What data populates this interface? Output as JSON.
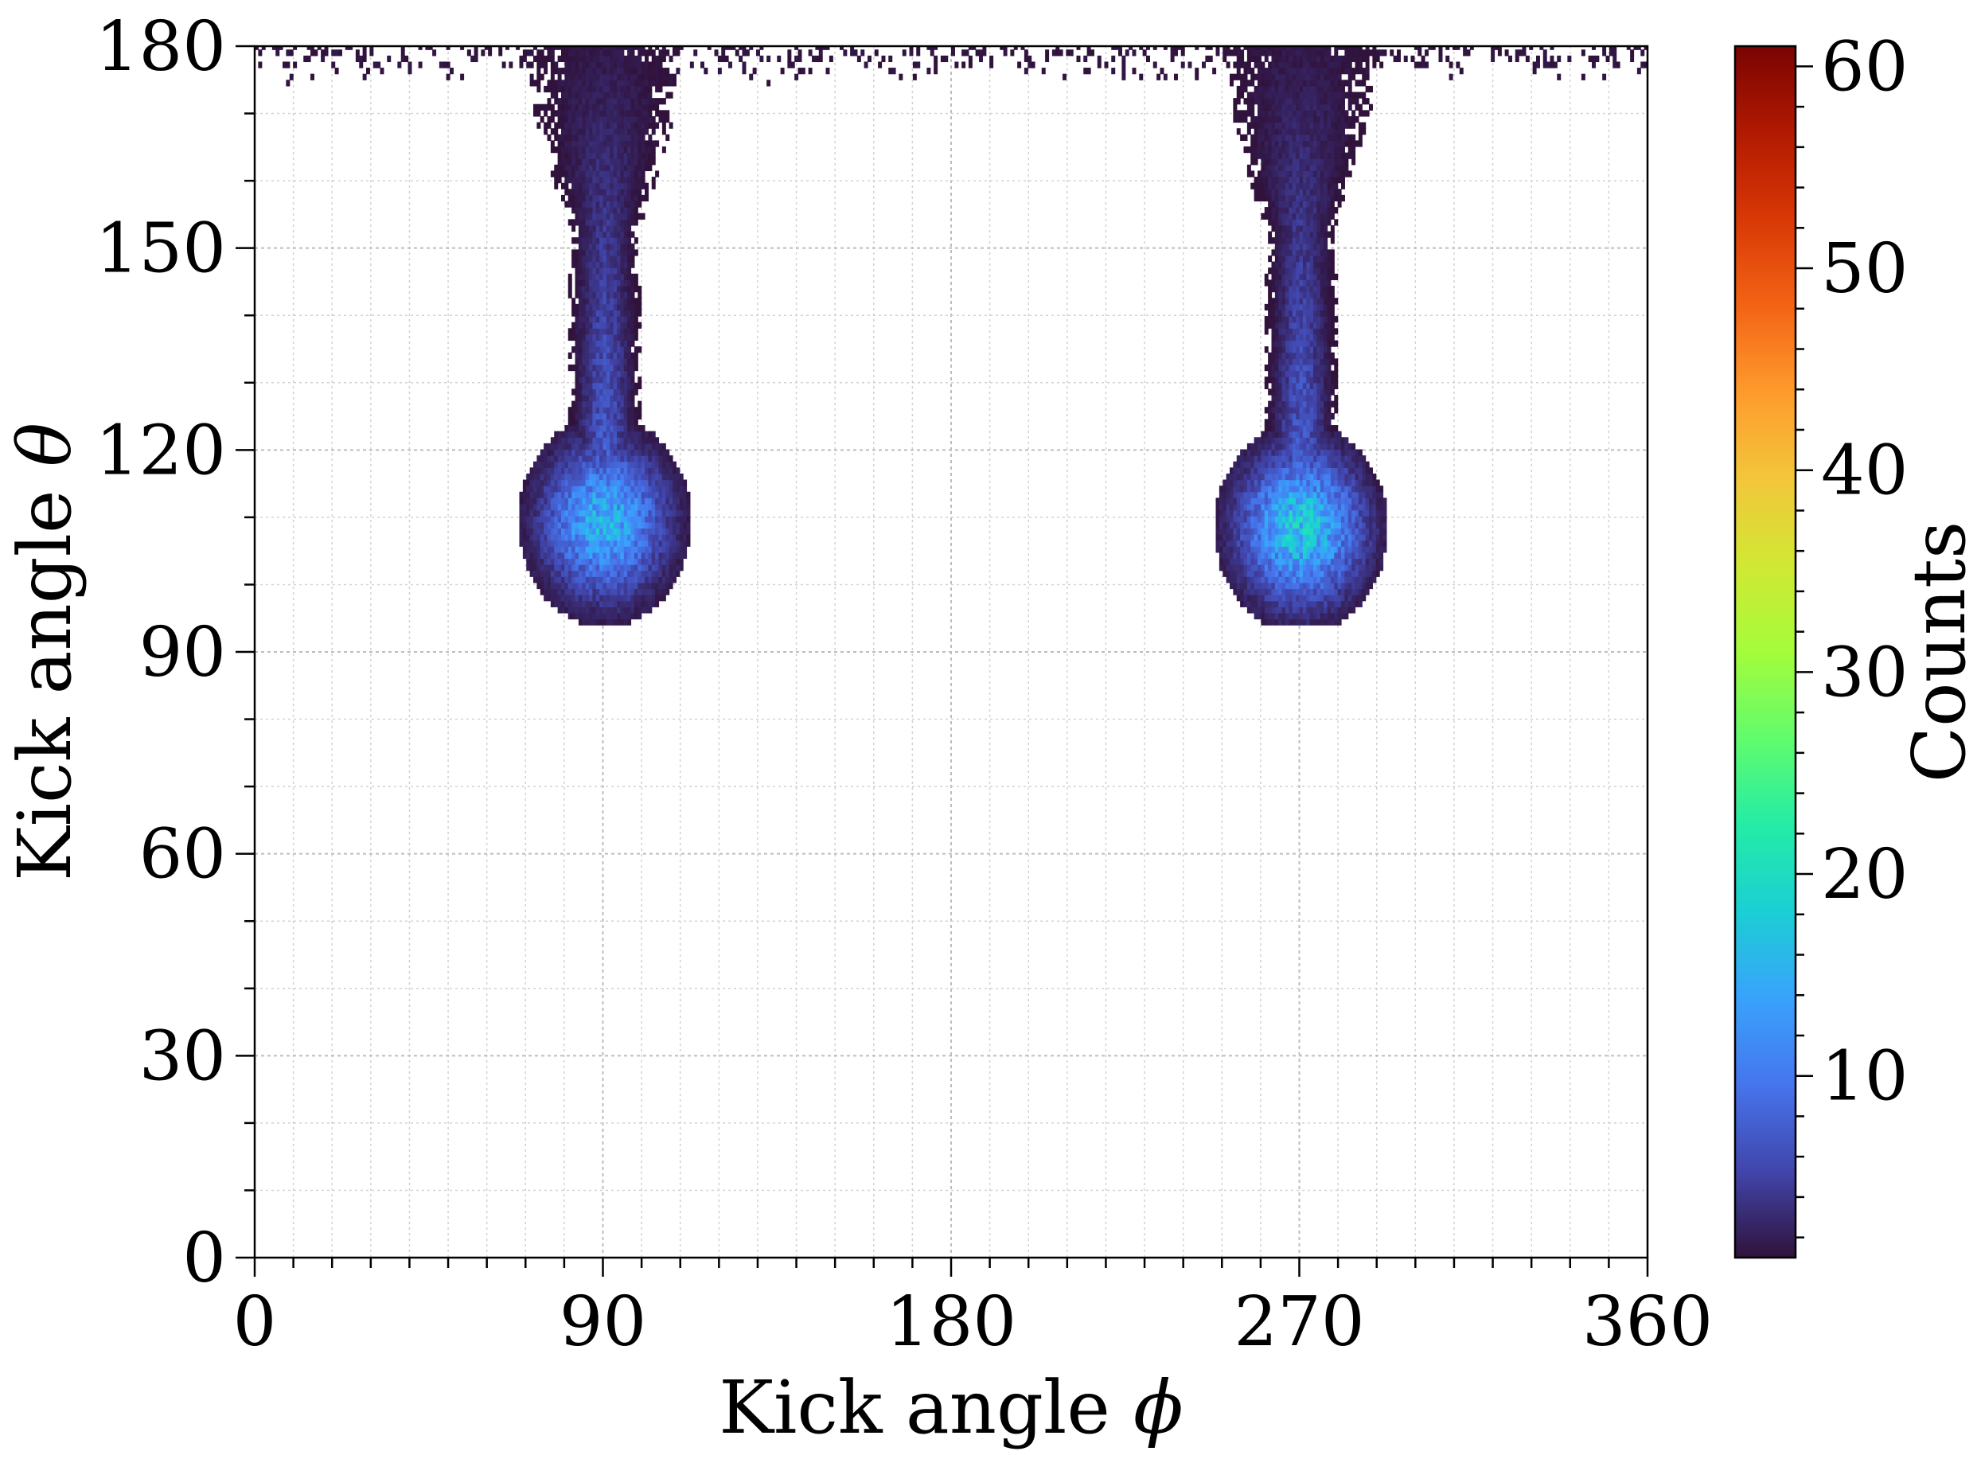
{
  "chart_data": {
    "type": "heatmap",
    "xlabel": "Kick angle",
    "xlabel_symbol": "ϕ",
    "ylabel": "Kick angle",
    "ylabel_symbol": "θ",
    "xlim": [
      0,
      360
    ],
    "ylim": [
      0,
      180
    ],
    "x_ticks": [
      "0",
      "90",
      "180",
      "270",
      "360"
    ],
    "y_ticks": [
      "0",
      "30",
      "60",
      "90",
      "120",
      "150",
      "180"
    ],
    "x_minor_step": 10,
    "y_minor_step": 10,
    "grid": true,
    "colorbar": {
      "label": "Counts",
      "range": [
        1,
        61
      ],
      "ticks": [
        "10",
        "20",
        "30",
        "40",
        "50",
        "60"
      ],
      "colormap": "turbo",
      "colors": [
        "#30123b",
        "#4145ab",
        "#4675ed",
        "#39a2fc",
        "#1bcfd4",
        "#24eca6",
        "#61fc6c",
        "#a4fc3b",
        "#d1e834",
        "#f3c63a",
        "#fe9b2d",
        "#f36315",
        "#d93806",
        "#b11901",
        "#7a0403"
      ]
    },
    "clusters": [
      {
        "phi_center": 90,
        "theta_peak": 114,
        "peak_counts": 15,
        "theta_min": 96,
        "theta_max": 180,
        "bulb_phi_halfwidth": 20,
        "stem_phi_halfwidth": 8
      },
      {
        "phi_center": 270,
        "theta_peak": 113,
        "peak_counts": 17,
        "theta_min": 95,
        "theta_max": 180,
        "bulb_phi_halfwidth": 20,
        "stem_phi_halfwidth": 8
      }
    ],
    "top_band": {
      "theta_min": 174,
      "theta_max": 180,
      "phi_range": [
        0,
        360
      ]
    }
  }
}
